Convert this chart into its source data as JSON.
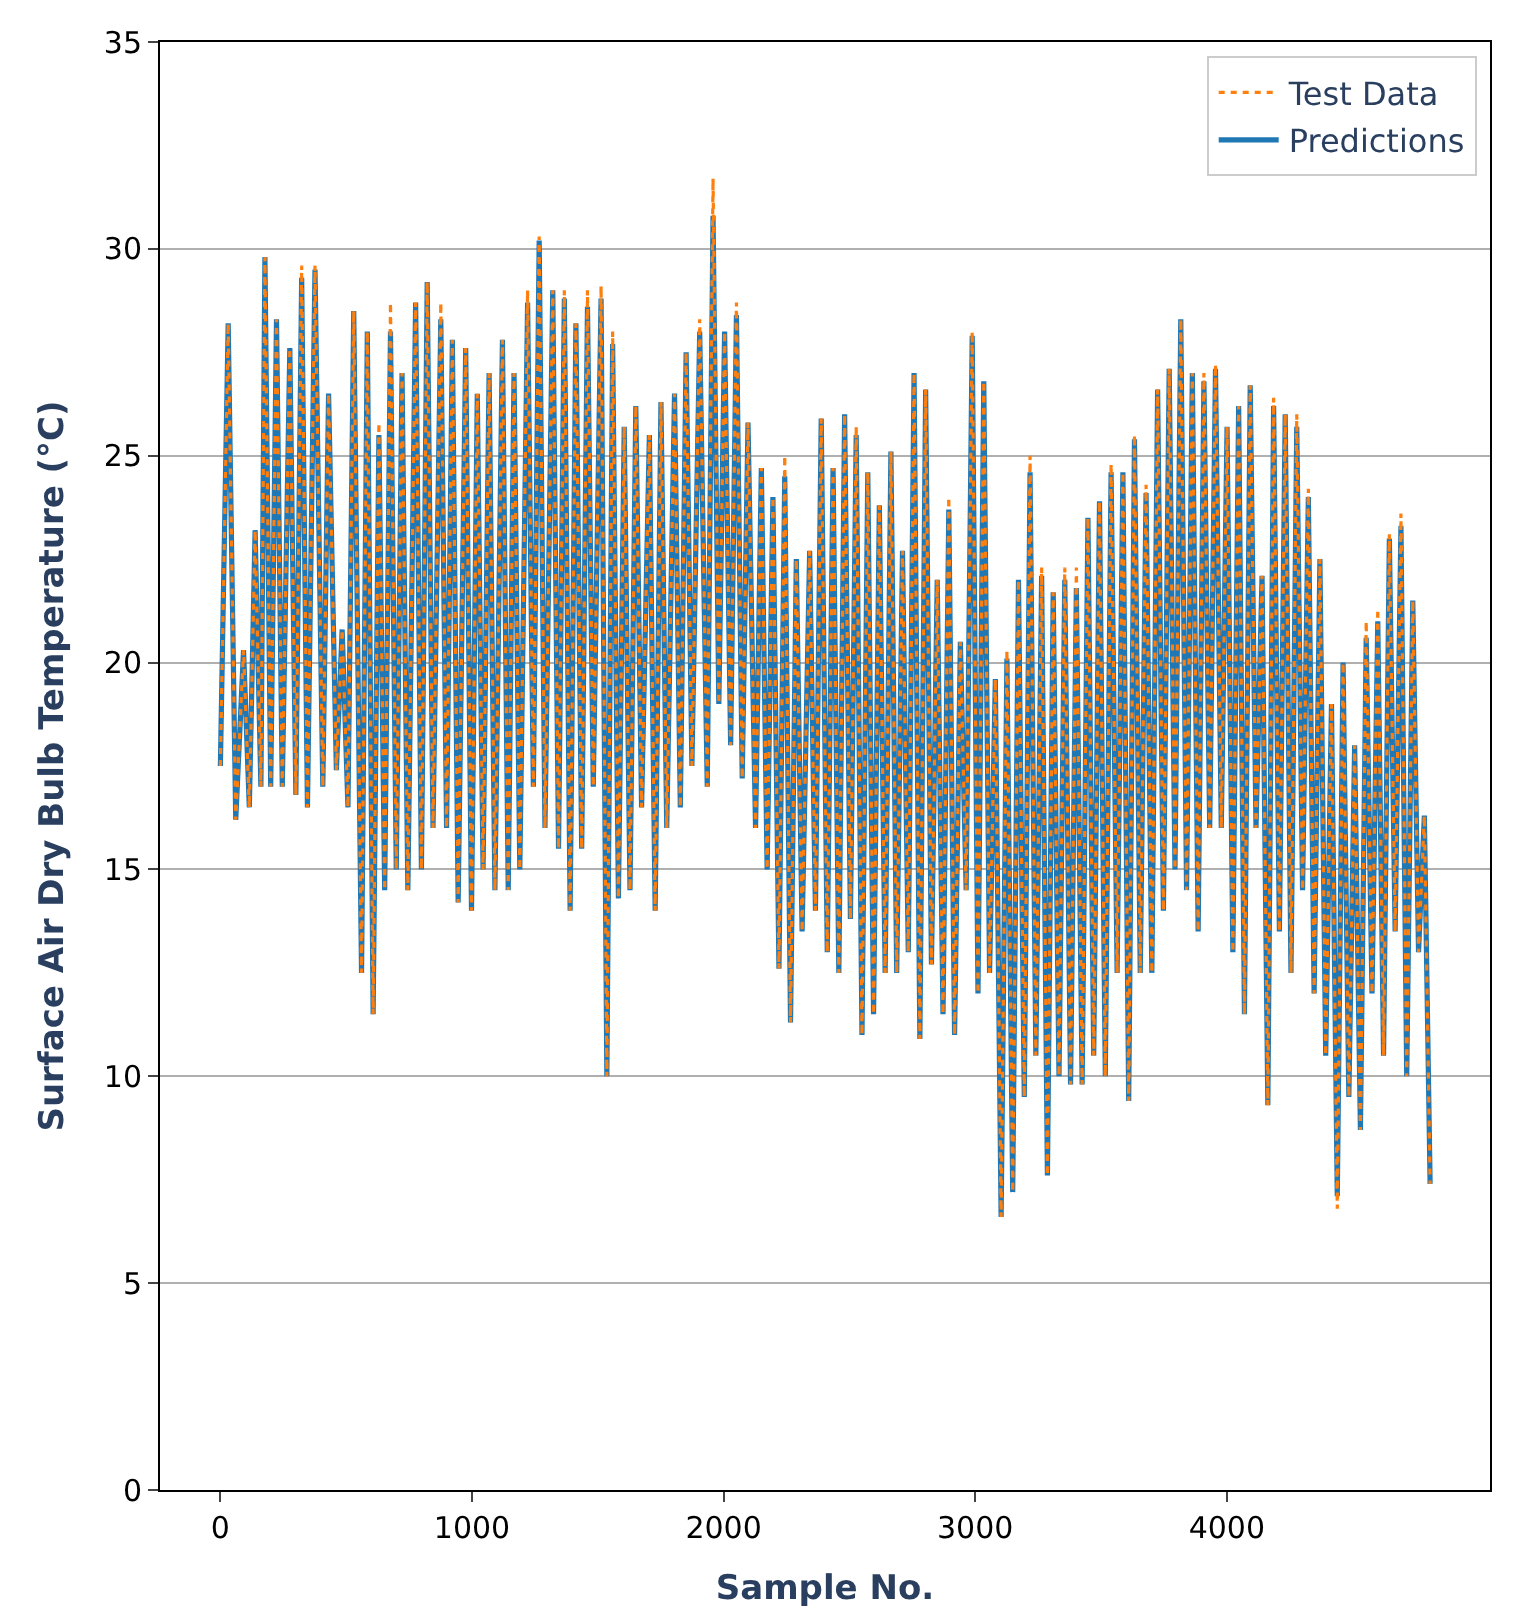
{
  "chart_data": {
    "type": "line",
    "xlabel": "Sample No.",
    "ylabel": "Surface Air Dry Bulb Temperature (°C)",
    "xlim": [
      -240,
      5046
    ],
    "xticks": [
      0,
      1000,
      2000,
      3000,
      4000
    ],
    "ylim": [
      0,
      35
    ],
    "yticks": [
      0,
      5,
      10,
      15,
      20,
      25,
      30,
      35
    ],
    "grid": "y",
    "legend": "top right",
    "x": [
      0,
      31,
      61,
      92,
      115,
      138,
      161,
      177,
      200,
      223,
      246,
      276,
      300,
      323,
      346,
      376,
      407,
      430,
      461,
      484,
      507,
      530,
      561,
      584,
      607,
      630,
      653,
      676,
      699,
      722,
      745,
      776,
      799,
      822,
      845,
      876,
      899,
      922,
      945,
      975,
      998,
      1021,
      1044,
      1068,
      1091,
      1121,
      1144,
      1167,
      1190,
      1221,
      1244,
      1267,
      1290,
      1321,
      1344,
      1367,
      1390,
      1413,
      1436,
      1459,
      1482,
      1513,
      1536,
      1559,
      1582,
      1605,
      1628,
      1651,
      1674,
      1705,
      1728,
      1751,
      1774,
      1805,
      1828,
      1851,
      1874,
      1905,
      1935,
      1958,
      1981,
      2004,
      2028,
      2051,
      2074,
      2097,
      2127,
      2150,
      2173,
      2196,
      2220,
      2243,
      2266,
      2289,
      2312,
      2342,
      2365,
      2388,
      2412,
      2435,
      2458,
      2481,
      2504,
      2527,
      2550,
      2573,
      2596,
      2619,
      2642,
      2665,
      2688,
      2711,
      2734,
      2757,
      2780,
      2803,
      2826,
      2849,
      2872,
      2895,
      2918,
      2941,
      2964,
      2988,
      3011,
      3034,
      3057,
      3080,
      3103,
      3126,
      3149,
      3172,
      3195,
      3218,
      3241,
      3264,
      3287,
      3310,
      3333,
      3356,
      3379,
      3402,
      3425,
      3448,
      3471,
      3494,
      3517,
      3540,
      3564,
      3587,
      3610,
      3633,
      3656,
      3679,
      3702,
      3725,
      3748,
      3771,
      3794,
      3817,
      3840,
      3863,
      3886,
      3909,
      3932,
      3955,
      3978,
      4001,
      4024,
      4047,
      4070,
      4093,
      4116,
      4140,
      4163,
      4186,
      4209,
      4232,
      4255,
      4278,
      4301,
      4324,
      4347,
      4370,
      4393,
      4416,
      4439,
      4462,
      4485,
      4508,
      4531,
      4554,
      4577,
      4600,
      4623,
      4646,
      4669,
      4692,
      4715,
      4739,
      4762,
      4785,
      4808
    ],
    "series": [
      {
        "name": "Test Data",
        "color": "#ff7f0e",
        "line_style": "dotted",
        "values": [
          17.5,
          28.2,
          16.2,
          20.3,
          16.5,
          23.2,
          17,
          29.8,
          17,
          28.3,
          17,
          27.6,
          16.8,
          29.6,
          16.5,
          29.6,
          17,
          26.5,
          17.4,
          20.8,
          16.5,
          28.5,
          12.5,
          28,
          11.5,
          25.8,
          14.5,
          28.7,
          15,
          27,
          14.5,
          28.7,
          15,
          29.2,
          16,
          28.7,
          16,
          27.8,
          14.2,
          27.6,
          14,
          26.5,
          15,
          27,
          14.5,
          27.8,
          14.5,
          27,
          15,
          29,
          17,
          30.3,
          16,
          29,
          15.5,
          29,
          14,
          28.2,
          15.5,
          29,
          17,
          29.1,
          10,
          28,
          14.3,
          25.7,
          14.5,
          26.2,
          16.5,
          25.5,
          14,
          26.3,
          16,
          26.5,
          16.5,
          27.5,
          17.5,
          28.3,
          17,
          31.7,
          19,
          28,
          18,
          28.7,
          17.2,
          25.8,
          16,
          24.7,
          15,
          24,
          12.6,
          25,
          11.3,
          22.5,
          13.5,
          22.7,
          14,
          25.9,
          13,
          24.7,
          12.5,
          26,
          13.8,
          25.7,
          11,
          24.6,
          11.5,
          23.8,
          12.5,
          25.1,
          12.5,
          22.7,
          13,
          27,
          10.9,
          26.6,
          12.7,
          22,
          11.5,
          24,
          11,
          20.5,
          14.5,
          28,
          12,
          26.8,
          12.5,
          19.6,
          6.6,
          20.3,
          7.2,
          22,
          9.5,
          25,
          10.5,
          22.3,
          7.6,
          21.7,
          10,
          22.3,
          9.8,
          22.3,
          9.8,
          23.5,
          10.5,
          23.9,
          10,
          24.8,
          12.5,
          24.6,
          9.4,
          25.5,
          12.5,
          24.3,
          12.5,
          26.6,
          14,
          27.1,
          15,
          28.3,
          14.5,
          27,
          13.5,
          27,
          16,
          27.2,
          16,
          25.7,
          13,
          26.2,
          11.5,
          26.7,
          16,
          22.1,
          9.3,
          26.4,
          13.5,
          26,
          12.5,
          26,
          14.5,
          24.2,
          12,
          22.5,
          10.5,
          19,
          6.8,
          20,
          9.5,
          18,
          8.7,
          21,
          12,
          21.3,
          10.5,
          23.1,
          13.5,
          23.6,
          10,
          21.5,
          13,
          16.3,
          7.4
        ]
      },
      {
        "name": "Predictions",
        "color": "#1f77b4",
        "line_style": "solid",
        "values": [
          17.5,
          28.2,
          16.2,
          20.3,
          16.5,
          23.2,
          17,
          29.8,
          17,
          28.3,
          17,
          27.6,
          16.8,
          29.3,
          16.5,
          29.5,
          17,
          26.5,
          17.4,
          20.8,
          16.5,
          28.5,
          12.5,
          28,
          11.5,
          25.5,
          14.5,
          28,
          15,
          27,
          14.5,
          28.7,
          15,
          29.2,
          16,
          28.3,
          16,
          27.8,
          14.2,
          27.6,
          14,
          26.5,
          15,
          27,
          14.5,
          27.8,
          14.5,
          27,
          15,
          28.7,
          17,
          30.2,
          16,
          29,
          15.5,
          28.8,
          14,
          28.2,
          15.5,
          28.6,
          17,
          28.8,
          10,
          27.7,
          14.3,
          25.7,
          14.5,
          26.2,
          16.5,
          25.5,
          14,
          26.3,
          16,
          26.5,
          16.5,
          27.5,
          17.5,
          28,
          17,
          30.8,
          19,
          28,
          18,
          28.4,
          17.2,
          25.8,
          16,
          24.7,
          15,
          24,
          12.6,
          24.5,
          11.3,
          22.5,
          13.5,
          22.7,
          14,
          25.9,
          13,
          24.7,
          12.5,
          26,
          13.8,
          25.5,
          11,
          24.6,
          11.5,
          23.8,
          12.5,
          25.1,
          12.5,
          22.7,
          13,
          27,
          10.9,
          26.6,
          12.7,
          22,
          11.5,
          23.7,
          11,
          20.5,
          14.5,
          27.9,
          12,
          26.8,
          12.5,
          19.6,
          6.6,
          20.1,
          7.2,
          22,
          9.5,
          24.6,
          10.5,
          22.1,
          7.6,
          21.7,
          10,
          22,
          9.8,
          21.8,
          9.8,
          23.5,
          10.5,
          23.9,
          10,
          24.6,
          12.5,
          24.6,
          9.4,
          25.4,
          12.5,
          24.1,
          12.5,
          26.6,
          14,
          27.1,
          15,
          28.3,
          14.5,
          27,
          13.5,
          26.8,
          16,
          27.1,
          16,
          25.7,
          13,
          26.2,
          11.5,
          26.7,
          16,
          22.1,
          9.3,
          26.2,
          13.5,
          26,
          12.5,
          25.7,
          14.5,
          24,
          12,
          22.5,
          10.5,
          19,
          7.1,
          20,
          9.5,
          18,
          8.7,
          20.6,
          12,
          21,
          10.5,
          23,
          13.5,
          23.3,
          10,
          21.5,
          13,
          16.3,
          7.4
        ]
      }
    ]
  }
}
